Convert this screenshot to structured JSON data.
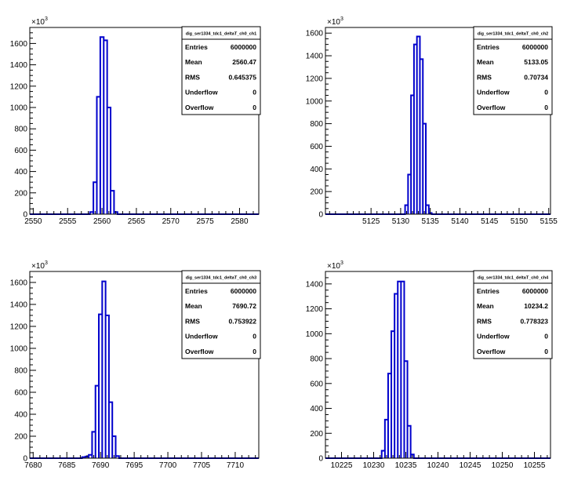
{
  "chart_data": [
    {
      "type": "histogram",
      "title": "dig_ser1334_tdc1_deltaT_ch0_ch1",
      "xlim": [
        2549.5,
        2582.8
      ],
      "ylim": [
        0,
        1750
      ],
      "y_exponent": "3",
      "y_exponent_prefix": "×10",
      "xticks": [
        2550,
        2555,
        2560,
        2565,
        2570,
        2575,
        2580
      ],
      "yticks": [
        0,
        200,
        400,
        600,
        800,
        1000,
        1200,
        1400,
        1600
      ],
      "bin_width": 0.5,
      "bins": [
        {
          "x": 2558.5,
          "y": 20
        },
        {
          "x": 2559.0,
          "y": 300
        },
        {
          "x": 2559.5,
          "y": 1100
        },
        {
          "x": 2560.0,
          "y": 1660
        },
        {
          "x": 2560.5,
          "y": 1630
        },
        {
          "x": 2561.0,
          "y": 1000
        },
        {
          "x": 2561.5,
          "y": 220
        },
        {
          "x": 2562.0,
          "y": 20
        }
      ],
      "stats": [
        {
          "label": "Entries",
          "value": "6000000"
        },
        {
          "label": "Mean",
          "value": "2560.47"
        },
        {
          "label": "RMS",
          "value": "0.645375"
        },
        {
          "label": "Underflow",
          "value": "0"
        },
        {
          "label": "Overflow",
          "value": "0"
        }
      ]
    },
    {
      "type": "histogram",
      "title": "dig_ser1334_tdc1_deltaT_ch0_ch2",
      "xlim": [
        5117.3,
        5155.3
      ],
      "ylim": [
        0,
        1650
      ],
      "y_exponent": "3",
      "y_exponent_prefix": "×10",
      "xticks": [
        5125,
        5130,
        5135,
        5140,
        5145,
        5150,
        5155
      ],
      "yticks": [
        0,
        200,
        400,
        600,
        800,
        1000,
        1200,
        1400,
        1600
      ],
      "bin_width": 0.5,
      "bins": [
        {
          "x": 5131.0,
          "y": 80
        },
        {
          "x": 5131.5,
          "y": 350
        },
        {
          "x": 5132.0,
          "y": 1050
        },
        {
          "x": 5132.5,
          "y": 1500
        },
        {
          "x": 5133.0,
          "y": 1570
        },
        {
          "x": 5133.5,
          "y": 1370
        },
        {
          "x": 5134.0,
          "y": 800
        },
        {
          "x": 5134.5,
          "y": 80
        },
        {
          "x": 5135.0,
          "y": 10
        }
      ],
      "stats": [
        {
          "label": "Entries",
          "value": "6000000"
        },
        {
          "label": "Mean",
          "value": "5133.05"
        },
        {
          "label": "RMS",
          "value": "0.70734"
        },
        {
          "label": "Underflow",
          "value": "0"
        },
        {
          "label": "Overflow",
          "value": "0"
        }
      ]
    },
    {
      "type": "histogram",
      "title": "dig_ser1334_tdc1_deltaT_ch0_ch3",
      "xlim": [
        7679.5,
        7713.5
      ],
      "ylim": [
        0,
        1700
      ],
      "y_exponent": "3",
      "y_exponent_prefix": "×10",
      "xticks": [
        7680,
        7685,
        7690,
        7695,
        7700,
        7705,
        7710
      ],
      "yticks": [
        0,
        200,
        400,
        600,
        800,
        1000,
        1200,
        1400,
        1600
      ],
      "bin_width": 0.5,
      "bins": [
        {
          "x": 7687.5,
          "y": 10
        },
        {
          "x": 7688.0,
          "y": 15
        },
        {
          "x": 7688.5,
          "y": 30
        },
        {
          "x": 7689.0,
          "y": 240
        },
        {
          "x": 7689.5,
          "y": 660
        },
        {
          "x": 7690.0,
          "y": 1310
        },
        {
          "x": 7690.5,
          "y": 1610
        },
        {
          "x": 7691.0,
          "y": 1300
        },
        {
          "x": 7691.5,
          "y": 510
        },
        {
          "x": 7692.0,
          "y": 200
        },
        {
          "x": 7692.5,
          "y": 20
        }
      ],
      "stats": [
        {
          "label": "Entries",
          "value": "6000000"
        },
        {
          "label": "Mean",
          "value": "7690.72"
        },
        {
          "label": "RMS",
          "value": "0.753922"
        },
        {
          "label": "Underflow",
          "value": "0"
        },
        {
          "label": "Overflow",
          "value": "0"
        }
      ]
    },
    {
      "type": "histogram",
      "title": "dig_ser1334_tdc1_deltaT_ch0_ch4",
      "xlim": [
        10222.5,
        10257.5
      ],
      "ylim": [
        0,
        1500
      ],
      "y_exponent": "3",
      "y_exponent_prefix": "×10",
      "xticks": [
        10225,
        10230,
        10235,
        10240,
        10245,
        10250,
        10255
      ],
      "yticks": [
        0,
        200,
        400,
        600,
        800,
        1000,
        1200,
        1400
      ],
      "bin_width": 0.5,
      "bins": [
        {
          "x": 10231.5,
          "y": 60
        },
        {
          "x": 10232.0,
          "y": 310
        },
        {
          "x": 10232.5,
          "y": 680
        },
        {
          "x": 10233.0,
          "y": 1020
        },
        {
          "x": 10233.5,
          "y": 1320
        },
        {
          "x": 10234.0,
          "y": 1420
        },
        {
          "x": 10234.5,
          "y": 1420
        },
        {
          "x": 10235.0,
          "y": 780
        },
        {
          "x": 10235.5,
          "y": 260
        },
        {
          "x": 10236.0,
          "y": 30
        }
      ],
      "stats": [
        {
          "label": "Entries",
          "value": "6000000"
        },
        {
          "label": "Mean",
          "value": "10234.2"
        },
        {
          "label": "RMS",
          "value": "0.778323"
        },
        {
          "label": "Underflow",
          "value": "0"
        },
        {
          "label": "Overflow",
          "value": "0"
        }
      ]
    }
  ],
  "colors": {
    "histogram_line": "#0000cc",
    "axis": "#000000",
    "background": "#ffffff"
  }
}
